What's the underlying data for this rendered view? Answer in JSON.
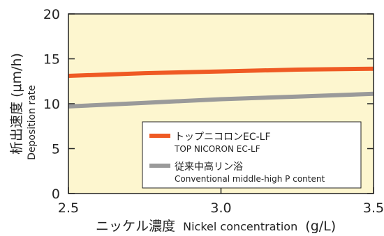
{
  "chart_data": {
    "type": "line",
    "xlabel_main": "ニッケル濃度",
    "xlabel_sub": "Nickel concentration",
    "xlabel_unit": "(g/L)",
    "ylabel_main": "析出速度 (μm/h)",
    "ylabel_sub": "Deposition rate",
    "xlim": [
      2.5,
      3.5
    ],
    "ylim": [
      0,
      20
    ],
    "xticks": [
      2.5,
      3.0,
      3.5
    ],
    "xtick_labels": [
      "2.5",
      "3.0",
      "3.5"
    ],
    "yticks": [
      0,
      5,
      10,
      15,
      20
    ],
    "ytick_labels": [
      "0",
      "5",
      "10",
      "15",
      "20"
    ],
    "grid": false,
    "background": "#fdf6cf",
    "legend_position": "bottom-right",
    "series": [
      {
        "name": "トップニコロンEC-LF",
        "name_en": "TOP NICORON EC-LF",
        "color": "#ef5a24",
        "x": [
          2.5,
          2.75,
          3.0,
          3.25,
          3.5
        ],
        "y": [
          13.1,
          13.4,
          13.6,
          13.8,
          13.9
        ]
      },
      {
        "name": "従来中高リン浴",
        "name_en": "Conventional middle-high P content",
        "color": "#9a9a9a",
        "x": [
          2.5,
          2.75,
          3.0,
          3.25,
          3.5
        ],
        "y": [
          9.7,
          10.1,
          10.5,
          10.8,
          11.1
        ]
      }
    ]
  }
}
